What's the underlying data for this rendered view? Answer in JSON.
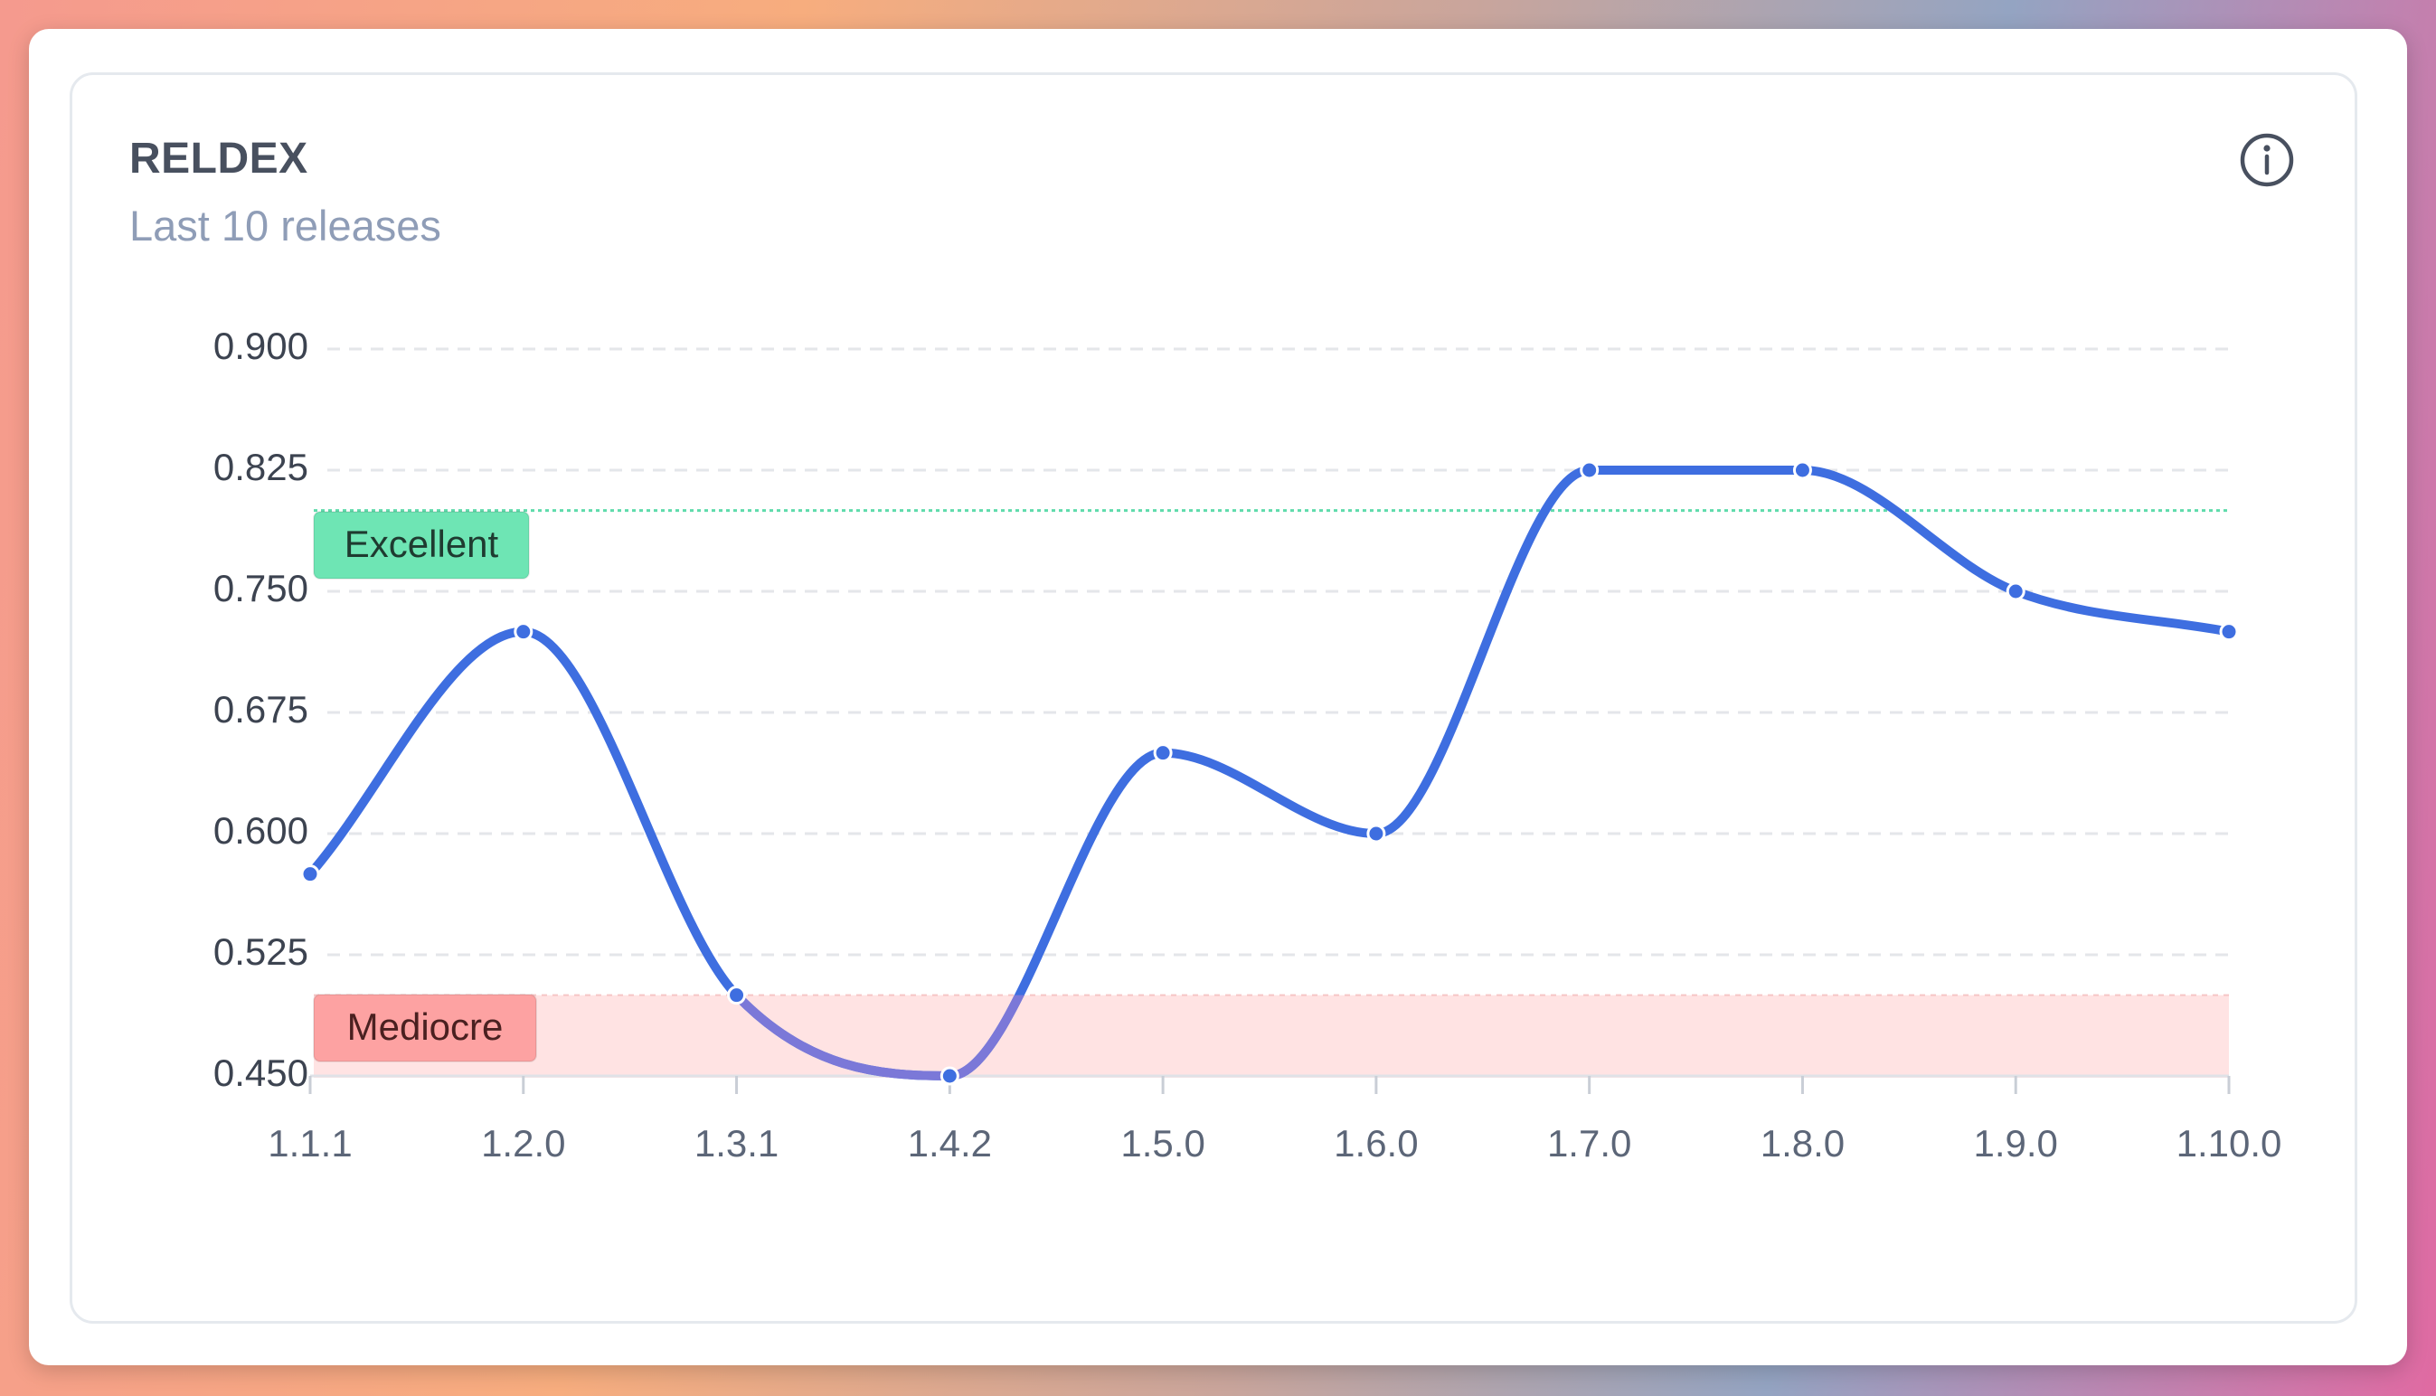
{
  "card": {
    "title": "RELDEX",
    "subtitle": "Last 10 releases",
    "info_icon": "info-circle-icon"
  },
  "chart_data": {
    "type": "line",
    "categories": [
      "1.1.1",
      "1.2.0",
      "1.3.1",
      "1.4.2",
      "1.5.0",
      "1.6.0",
      "1.7.0",
      "1.8.0",
      "1.9.0",
      "1.10.0"
    ],
    "series": [
      {
        "values": [
          0.575,
          0.725,
          0.5,
          0.45,
          0.65,
          0.6,
          0.825,
          0.825,
          0.75,
          0.725
        ],
        "color": "#3e6ee0"
      }
    ],
    "ylim": [
      0.45,
      0.9
    ],
    "yticks": [
      "0.900",
      "0.825",
      "0.750",
      "0.675",
      "0.600",
      "0.525",
      "0.450"
    ],
    "grid": true,
    "bands": [
      {
        "label": "Excellent",
        "from": 0.8,
        "to": 0.8,
        "kind": "threshold-line",
        "line_color": "#5fdbab",
        "label_bg": "#6ee5b4",
        "label_color": "#1f3b30"
      },
      {
        "label": "Mediocre",
        "from": 0.45,
        "to": 0.5,
        "kind": "area",
        "area_color": "#ffe3e3",
        "label_bg": "#fda2a2",
        "label_color": "#4a2020"
      }
    ],
    "colors": {
      "line": "#3e6ee0",
      "line_low": "#7b78d8",
      "grid": "#e4e6ea",
      "tick_text": "#3c4350",
      "x_tick_text": "#5c6678"
    }
  }
}
